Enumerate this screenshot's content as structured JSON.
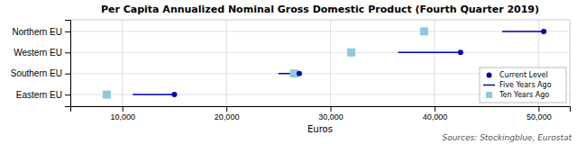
{
  "chart_data": {
    "type": "dumbbell",
    "orientation": "horizontal",
    "title": "Per Capita Annualized Nominal Gross Domestic Product (Fourth Quarter 2019)",
    "xlabel": "Euros",
    "annotations": [
      "Sources: Stockingblue, Eurostat"
    ],
    "categories": [
      "Northern EU",
      "Western EU",
      "Southern EU",
      "Eastern EU"
    ],
    "series": [
      {
        "name": "Current Level",
        "color": "#0000bb",
        "marker": "circle",
        "values": [
          50500,
          42500,
          27000,
          15000
        ]
      },
      {
        "name": "Five Years Ago",
        "color": "#0000bb",
        "line_style": "solid",
        "values": [
          46500,
          36500,
          25000,
          11000
        ]
      },
      {
        "name": "Ten Years Ago",
        "color": "#90c8d8",
        "marker": "square",
        "values": [
          39000,
          32000,
          26500,
          8500
        ]
      }
    ],
    "xlim": [
      5000,
      53000
    ],
    "xticks": [
      {
        "value": 10000,
        "label": "10,000"
      },
      {
        "value": 20000,
        "label": "20,000"
      },
      {
        "value": 30000,
        "label": "30,000"
      },
      {
        "value": 40000,
        "label": "40,000"
      },
      {
        "value": 50000,
        "label": "50,000"
      }
    ],
    "grid": true,
    "legend": "lower right"
  }
}
